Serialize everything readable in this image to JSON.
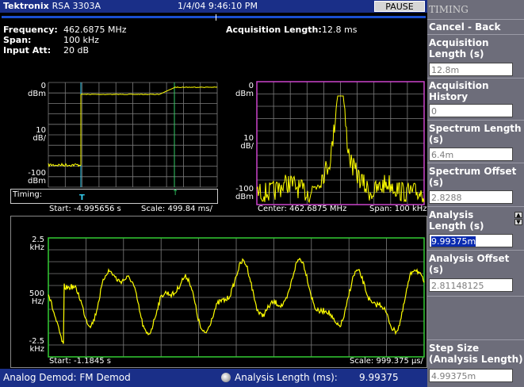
{
  "header": {
    "brand": "Tektronix",
    "model": "RSA 3303A",
    "datetime": "1/4/04 9:46:10 PM",
    "pause_label": "PAUSE"
  },
  "info": {
    "frequency_label": "Frequency:",
    "frequency_value": "462.6875 MHz",
    "span_label": "Span:",
    "span_value": "100 kHz",
    "input_att_label": "Input Att:",
    "input_att_value": "20 dB",
    "acq_length_label": "Acquisition Length:",
    "acq_length_value": "12.8 ms"
  },
  "timing_plot": {
    "y_top": "0\ndBm",
    "y_mid": "10\ndB/",
    "y_bot": "-100\ndBm",
    "timing_label": "Timing:",
    "marker_t": "T",
    "start": "Start: -4.995656 s",
    "scale": "Scale: 499.84 ms/"
  },
  "spectrum_plot": {
    "y_top": "0\ndBm",
    "y_mid": "10\ndB/",
    "y_bot": "-100\ndBm",
    "center": "Center: 462.6875 MHz",
    "span": "Span: 100 kHz"
  },
  "demod_plot": {
    "y_top": "2.5\nkHz",
    "y_mid": "500\nHz/",
    "y_bot": "-2.5\nkHz",
    "start": "Start: -1.1845 s",
    "scale": "Scale: 999.375 µs/"
  },
  "status": {
    "mode": "Analog Demod: FM Demod",
    "analysis_label": "Analysis Length (ms):",
    "analysis_value": "9.99375"
  },
  "menu": {
    "title": "TIMING",
    "cancel": "Cancel - Back",
    "acq_length_label": "Acquisition Length (s)",
    "acq_length_value": "12.8m",
    "acq_history_label": "Acquisition History",
    "acq_history_value": "0",
    "spectrum_length_label": "Spectrum Length (s)",
    "spectrum_length_value": "6.4m",
    "spectrum_offset_label": "Spectrum Offset (s)",
    "spectrum_offset_value": "2.8288",
    "analysis_length_label": "Analysis Length (s)",
    "analysis_length_value": "9.99375m",
    "analysis_offset_label": "Analysis Offset (s)",
    "analysis_offset_value": "2.81148125",
    "step_size_label": "Step Size (Analysis Length)",
    "step_size_value": "4.99375m"
  },
  "colors": {
    "trace": "#ffff00",
    "grid": "#7d7d7d",
    "spectrum_frame": "#cc44cc",
    "demod_frame": "#33cc33",
    "timing_frame": "#ffffff",
    "title_bar": "#1a2f88",
    "menu_bg": "#6d6d7a"
  }
}
